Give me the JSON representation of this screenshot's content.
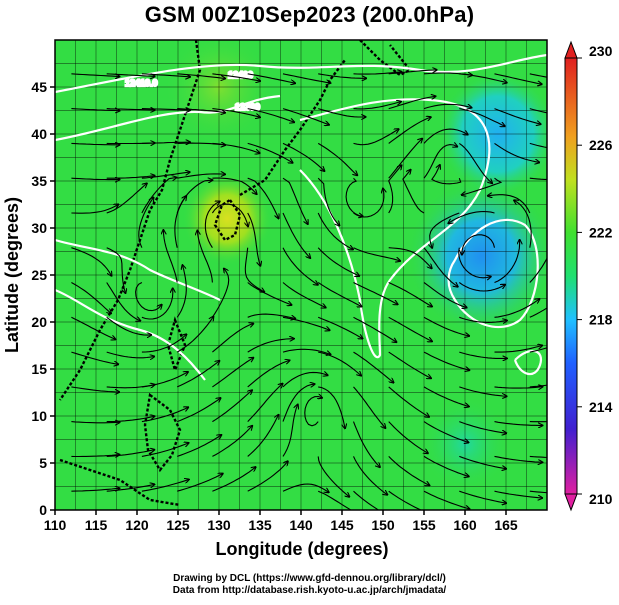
{
  "title": "GSM 00Z10Sep2023 (200.0hPa)",
  "credit": {
    "line1": "Drawing by DCL (https://www.gfd-dennou.org/library/dcl/)",
    "line2": "Data from http://database.rish.kyoto-u.ac.jp/arch/jmadata/"
  },
  "chart_data": {
    "type": "heatmap",
    "title": "GSM 00Z10Sep2023 (200.0hPa)",
    "xlabel": "Longitude (degrees)",
    "ylabel": "Latitude  (degrees)",
    "xlim": [
      110,
      170
    ],
    "ylim": [
      0,
      50
    ],
    "x_ticks": [
      "110",
      "115",
      "120",
      "125",
      "130",
      "135",
      "140",
      "145",
      "150",
      "155",
      "160",
      "165"
    ],
    "y_ticks": [
      "0",
      "5",
      "10",
      "15",
      "20",
      "25",
      "30",
      "35",
      "40",
      "45"
    ],
    "grid": true,
    "colorbar": {
      "min": 210,
      "max": 230,
      "ticks": [
        "210",
        "214",
        "218",
        "222",
        "226",
        "230"
      ],
      "colors": [
        "#e020a0",
        "#2020e0",
        "#20a0ff",
        "#20e060",
        "#e0e020",
        "#f06020",
        "#e02020"
      ],
      "placement": "right"
    },
    "fields": {
      "background": "#33dd44",
      "features": [
        {
          "kind": "warm",
          "lon": 131,
          "lat": 31,
          "value": 225
        },
        {
          "kind": "cold",
          "lon": 162,
          "lat": 27,
          "value": 218
        },
        {
          "kind": "cold",
          "lon": 164,
          "lat": 40,
          "value": 219
        },
        {
          "kind": "warm",
          "lon": 130,
          "lat": 45,
          "value": 223
        },
        {
          "kind": "mild",
          "lon": 160,
          "lat": 7,
          "value": 221.5
        }
      ]
    },
    "contour_labels": [
      "12410.0",
      "12400",
      "12300"
    ],
    "coastline_color": "#000000",
    "streamline_color": "#000000",
    "contour_color": "#ffffff"
  }
}
